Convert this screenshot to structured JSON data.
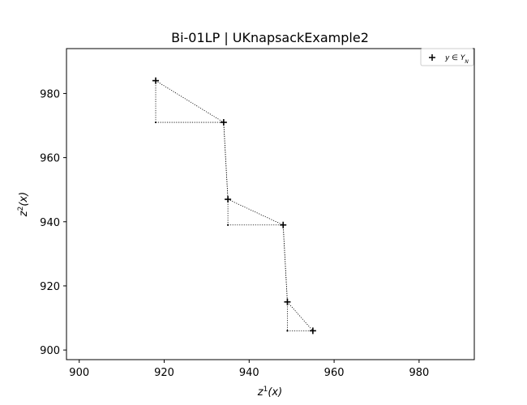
{
  "chart_data": {
    "type": "scatter",
    "title": "Bi-01LP | UKnapsackExample2",
    "xlabel": "z¹(x)",
    "ylabel": "z²(x)",
    "xlim": [
      897,
      993
    ],
    "ylim": [
      897,
      994
    ],
    "xticks": [
      900,
      920,
      940,
      960,
      980
    ],
    "yticks": [
      900,
      920,
      940,
      960,
      980
    ],
    "grid": false,
    "legend_position": "top-right",
    "series": [
      {
        "name": "y ∈ Y_N",
        "marker": "plus",
        "points": [
          {
            "x": 918,
            "y": 984
          },
          {
            "x": 934,
            "y": 971
          },
          {
            "x": 935,
            "y": 947
          },
          {
            "x": 948,
            "y": 939
          },
          {
            "x": 949,
            "y": 915
          },
          {
            "x": 955,
            "y": 906
          }
        ]
      }
    ],
    "local_nadirs": [
      {
        "x": 918,
        "y": 971
      },
      {
        "x": 935,
        "y": 939
      },
      {
        "x": 949,
        "y": 906
      }
    ]
  }
}
